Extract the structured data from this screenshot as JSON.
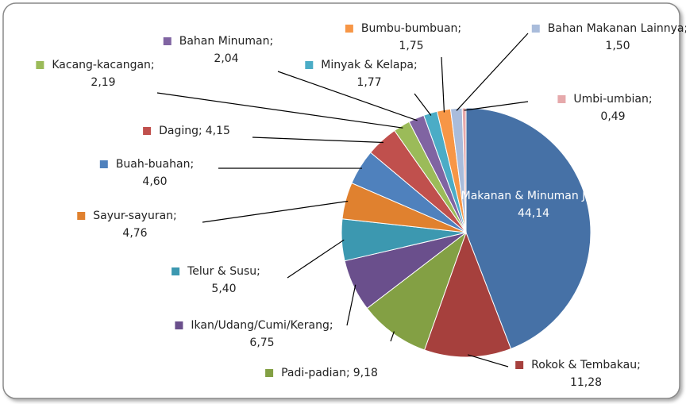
{
  "chart_data": {
    "type": "pie",
    "categories": [
      "Makanan & Minuman Jadi",
      "Rokok & Tembakau",
      "Padi-padian",
      "Ikan/Udang/Cumi/Kerang",
      "Telur & Susu",
      "Sayur-sayuran",
      "Buah-buahan",
      "Daging",
      "Kacang-kacangan",
      "Bahan Minuman",
      "Minyak & Kelapa",
      "Bumbu-bumbuan",
      "Bahan Makanan Lainnya",
      "Umbi-umbian"
    ],
    "values": [
      44.14,
      11.28,
      9.18,
      6.75,
      5.4,
      4.76,
      4.6,
      4.15,
      2.19,
      2.04,
      1.77,
      1.75,
      1.5,
      0.49
    ],
    "value_labels": [
      "44,14",
      "11,28",
      "9,18",
      "6,75",
      "5,40",
      "4,76",
      "4,60",
      "4,15",
      "2,19",
      "2,04",
      "1,77",
      "1,75",
      "1,50",
      "0,49"
    ],
    "label_separator": ";",
    "colors": [
      "#4671a6",
      "#a6403d",
      "#83a044",
      "#6a4f8c",
      "#3c98b0",
      "#e0812f",
      "#4f81bd",
      "#c0504d",
      "#9bbb59",
      "#8064a2",
      "#4bacc6",
      "#f79646",
      "#a9bcdb",
      "#e6a9ab"
    ]
  }
}
